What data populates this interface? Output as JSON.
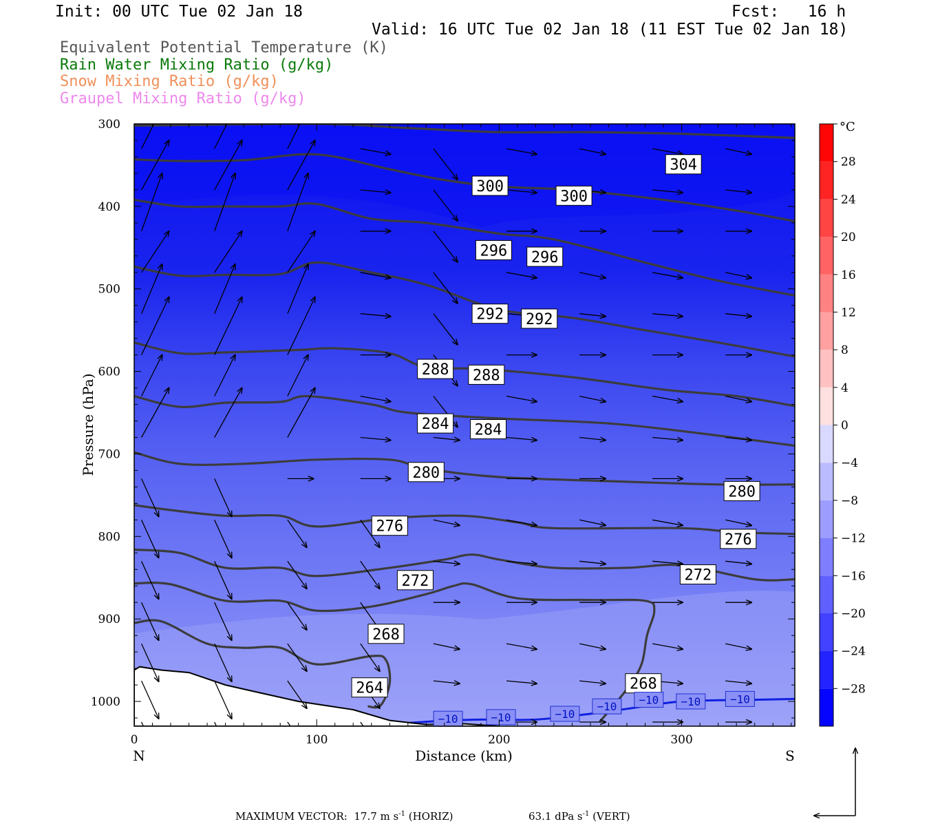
{
  "header": {
    "init": "Init: 00 UTC Tue 02 Jan 18",
    "fcst": "Fcst:   16 h",
    "valid": "Valid: 16 UTC Tue 02 Jan 18 (11 EST Tue 02 Jan 18)"
  },
  "fields": [
    {
      "label": "Equivalent Potential Temperature (K)",
      "color": "#555555"
    },
    {
      "label": "Rain Water Mixing Ratio (g/kg)",
      "color": "#0a7a0a"
    },
    {
      "label": "Snow Mixing Ratio (g/kg)",
      "color": "#f0905a"
    },
    {
      "label": "Graupel Mixing Ratio (g/kg)",
      "color": "#ee88ee"
    }
  ],
  "chart_data": {
    "type": "heatmap",
    "xlabel": "Distance (km)",
    "ylabel": "Pressure (hPa)",
    "xlim": [
      0,
      362
    ],
    "ylim": [
      1030,
      300
    ],
    "x_ticks": [
      0,
      100,
      200,
      300
    ],
    "y_ticks": [
      300,
      400,
      500,
      600,
      700,
      800,
      900,
      1000
    ],
    "x_end_labels": {
      "left": "N",
      "right": "S"
    },
    "colorbar": {
      "unit": "°C",
      "min": -32,
      "max": 32,
      "step": 4,
      "labels": [
        28,
        24,
        20,
        16,
        12,
        8,
        4,
        0,
        -4,
        -8,
        -12,
        -16,
        -20,
        -24,
        -28
      ],
      "cold_color": "#0000ff",
      "warm_color": "#ff0000"
    },
    "theta_e": [
      {
        "value": 264,
        "points": [
          [
            0,
            905
          ],
          [
            15,
            903
          ],
          [
            40,
            930
          ],
          [
            60,
            935
          ],
          [
            80,
            935
          ],
          [
            100,
            955
          ],
          [
            130,
            945
          ],
          [
            138,
            950
          ],
          [
            140,
            978
          ],
          [
            135,
            1005
          ],
          [
            128,
            1006
          ]
        ]
      },
      {
        "value": 268,
        "points": [
          [
            0,
            857
          ],
          [
            20,
            858
          ],
          [
            50,
            878
          ],
          [
            80,
            878
          ],
          [
            100,
            890
          ],
          [
            130,
            885
          ],
          [
            160,
            870
          ],
          [
            175,
            860
          ],
          [
            185,
            858
          ],
          [
            210,
            875
          ],
          [
            250,
            877
          ],
          [
            280,
            878
          ],
          [
            285,
            890
          ],
          [
            281,
            920
          ],
          [
            278,
            955
          ],
          [
            270,
            985
          ],
          [
            255,
            1025
          ]
        ]
      },
      {
        "value": 272,
        "points": [
          [
            0,
            816
          ],
          [
            25,
            820
          ],
          [
            50,
            838
          ],
          [
            80,
            838
          ],
          [
            100,
            848
          ],
          [
            140,
            838
          ],
          [
            170,
            828
          ],
          [
            185,
            822
          ],
          [
            200,
            828
          ],
          [
            230,
            838
          ],
          [
            270,
            838
          ],
          [
            300,
            835
          ],
          [
            340,
            852
          ],
          [
            362,
            852
          ]
        ]
      },
      {
        "value": 276,
        "points": [
          [
            0,
            762
          ],
          [
            20,
            768
          ],
          [
            50,
            775
          ],
          [
            80,
            775
          ],
          [
            100,
            788
          ],
          [
            140,
            778
          ],
          [
            180,
            775
          ],
          [
            210,
            783
          ],
          [
            230,
            790
          ],
          [
            300,
            790
          ],
          [
            330,
            795
          ],
          [
            362,
            797
          ]
        ]
      },
      {
        "value": 280,
        "points": [
          [
            0,
            698
          ],
          [
            25,
            712
          ],
          [
            60,
            712
          ],
          [
            100,
            707
          ],
          [
            140,
            707
          ],
          [
            160,
            718
          ],
          [
            200,
            728
          ],
          [
            260,
            733
          ],
          [
            320,
            737
          ],
          [
            362,
            737
          ]
        ]
      },
      {
        "value": 284,
        "points": [
          [
            0,
            630
          ],
          [
            25,
            643
          ],
          [
            50,
            638
          ],
          [
            80,
            637
          ],
          [
            95,
            630
          ],
          [
            130,
            640
          ],
          [
            150,
            650
          ],
          [
            200,
            657
          ],
          [
            260,
            663
          ],
          [
            310,
            675
          ],
          [
            362,
            690
          ]
        ]
      },
      {
        "value": 288,
        "points": [
          [
            0,
            565
          ],
          [
            25,
            578
          ],
          [
            50,
            577
          ],
          [
            90,
            574
          ],
          [
            110,
            572
          ],
          [
            140,
            578
          ],
          [
            160,
            595
          ],
          [
            190,
            597
          ],
          [
            240,
            607
          ],
          [
            290,
            622
          ],
          [
            330,
            630
          ],
          [
            362,
            642
          ]
        ]
      },
      {
        "value": 292,
        "points": [
          [
            0,
            473
          ],
          [
            25,
            484
          ],
          [
            50,
            483
          ],
          [
            80,
            482
          ],
          [
            100,
            468
          ],
          [
            130,
            480
          ],
          [
            160,
            495
          ],
          [
            200,
            525
          ],
          [
            240,
            535
          ],
          [
            280,
            550
          ],
          [
            320,
            565
          ],
          [
            362,
            582
          ]
        ]
      },
      {
        "value": 296,
        "points": [
          [
            0,
            392
          ],
          [
            25,
            400
          ],
          [
            50,
            400
          ],
          [
            80,
            400
          ],
          [
            100,
            397
          ],
          [
            130,
            415
          ],
          [
            160,
            420
          ],
          [
            200,
            433
          ],
          [
            230,
            440
          ],
          [
            280,
            468
          ],
          [
            320,
            490
          ],
          [
            362,
            508
          ]
        ]
      },
      {
        "value": 300,
        "points": [
          [
            0,
            343
          ],
          [
            25,
            345
          ],
          [
            60,
            344
          ],
          [
            100,
            337
          ],
          [
            140,
            355
          ],
          [
            170,
            368
          ],
          [
            200,
            376
          ],
          [
            240,
            380
          ],
          [
            290,
            392
          ],
          [
            330,
            405
          ],
          [
            362,
            418
          ]
        ]
      },
      {
        "value": 304,
        "points": [
          [
            0,
            302
          ],
          [
            100,
            300
          ],
          [
            150,
            305
          ],
          [
            200,
            310
          ],
          [
            250,
            310
          ],
          [
            300,
            312
          ],
          [
            362,
            317
          ]
        ]
      }
    ],
    "theta_e_labels": [
      {
        "value": 300,
        "x": 195,
        "p": 375
      },
      {
        "value": 300,
        "x": 241,
        "p": 387
      },
      {
        "value": 304,
        "x": 301,
        "p": 349
      },
      {
        "value": 296,
        "x": 197,
        "p": 453
      },
      {
        "value": 296,
        "x": 225,
        "p": 461
      },
      {
        "value": 292,
        "x": 195,
        "p": 530
      },
      {
        "value": 292,
        "x": 222,
        "p": 536
      },
      {
        "value": 288,
        "x": 165,
        "p": 597
      },
      {
        "value": 288,
        "x": 193,
        "p": 604
      },
      {
        "value": 284,
        "x": 165,
        "p": 663
      },
      {
        "value": 284,
        "x": 194,
        "p": 670
      },
      {
        "value": 280,
        "x": 160,
        "p": 722
      },
      {
        "value": 280,
        "x": 333,
        "p": 745
      },
      {
        "value": 276,
        "x": 140,
        "p": 787
      },
      {
        "value": 276,
        "x": 331,
        "p": 803
      },
      {
        "value": 272,
        "x": 154,
        "p": 853
      },
      {
        "value": 272,
        "x": 309,
        "p": 846
      },
      {
        "value": 268,
        "x": 138,
        "p": 918
      },
      {
        "value": 268,
        "x": 279,
        "p": 978
      },
      {
        "value": 264,
        "x": 129,
        "p": 983
      }
    ],
    "minus10_isotherm": [
      [
        145,
        1027
      ],
      [
        165,
        1024
      ],
      [
        190,
        1022
      ],
      [
        220,
        1022
      ],
      [
        250,
        1015
      ],
      [
        270,
        1009
      ],
      [
        300,
        1000
      ],
      [
        340,
        998
      ],
      [
        362,
        997
      ]
    ],
    "minus10_labels": [
      {
        "value": "−10",
        "x": 172,
        "p": 1021
      },
      {
        "value": "−10",
        "x": 201,
        "p": 1019
      },
      {
        "value": "−10",
        "x": 236,
        "p": 1015
      },
      {
        "value": "−10",
        "x": 259,
        "p": 1006
      },
      {
        "value": "−10",
        "x": 282,
        "p": 998
      },
      {
        "value": "−10",
        "x": 305,
        "p": 1000
      },
      {
        "value": "−10",
        "x": 332,
        "p": 997
      }
    ],
    "terrain": [
      [
        0,
        962
      ],
      [
        3,
        958
      ],
      [
        15,
        962
      ],
      [
        30,
        965
      ],
      [
        50,
        980
      ],
      [
        70,
        990
      ],
      [
        90,
        1000
      ],
      [
        105,
        1005
      ],
      [
        120,
        1010
      ],
      [
        140,
        1023
      ],
      [
        160,
        1028
      ],
      [
        180,
        1027
      ],
      [
        200,
        1030
      ]
    ],
    "maximum_vector": {
      "horiz": "MAXIMUM VECTOR:  17.7 m s",
      "horiz_exp": "-1",
      "horiz_tail": " (HORIZ)",
      "vert": "63.1 dPa s",
      "vert_exp": "-1",
      "vert_tail": " (VERT)"
    }
  }
}
